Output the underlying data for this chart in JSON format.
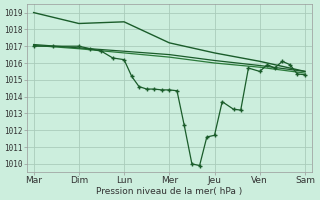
{
  "bg_color": "#cceedd",
  "grid_color": "#aaccbb",
  "line_color_dark": "#1a5c2a",
  "line_color_light": "#2a7a3a",
  "xlabel": "Pression niveau de la mer( hPa )",
  "xtick_labels": [
    "Mar",
    "Dim",
    "Lun",
    "Mer",
    "Jeu",
    "Ven",
    "Sam"
  ],
  "ytick_min": 1010,
  "ytick_max": 1019,
  "xtick_positions": [
    0,
    1,
    2,
    3,
    4,
    5,
    6
  ],
  "line1_x": [
    0,
    1,
    2,
    3,
    4,
    5,
    6
  ],
  "line1_y": [
    1019.0,
    1018.35,
    1018.45,
    1017.2,
    1016.6,
    1016.1,
    1015.5
  ],
  "line2_x": [
    0,
    1,
    2,
    3,
    4,
    5,
    6
  ],
  "line2_y": [
    1017.05,
    1016.85,
    1016.6,
    1016.35,
    1016.0,
    1015.75,
    1015.4
  ],
  "line3_x": [
    0,
    1,
    2,
    3,
    4,
    5,
    6
  ],
  "line3_y": [
    1017.1,
    1016.9,
    1016.7,
    1016.5,
    1016.15,
    1015.85,
    1015.5
  ],
  "jagged_x": [
    0,
    0.42,
    1,
    1.25,
    1.5,
    1.75,
    2,
    2.17,
    2.33,
    2.5,
    2.67,
    2.83,
    3,
    3.17,
    3.33,
    3.5,
    3.67,
    3.83,
    4,
    4.17,
    4.42,
    4.58,
    4.75,
    5,
    5.17,
    5.33,
    5.5,
    5.67,
    5.83,
    6
  ],
  "jagged_y": [
    1017.0,
    1017.0,
    1017.0,
    1016.85,
    1016.7,
    1016.3,
    1016.2,
    1015.2,
    1014.6,
    1014.45,
    1014.45,
    1014.4,
    1014.4,
    1014.35,
    1012.3,
    1010.0,
    1009.9,
    1011.6,
    1011.7,
    1013.7,
    1013.25,
    1013.2,
    1015.7,
    1015.5,
    1015.9,
    1015.7,
    1016.1,
    1015.9,
    1015.35,
    1015.3
  ]
}
